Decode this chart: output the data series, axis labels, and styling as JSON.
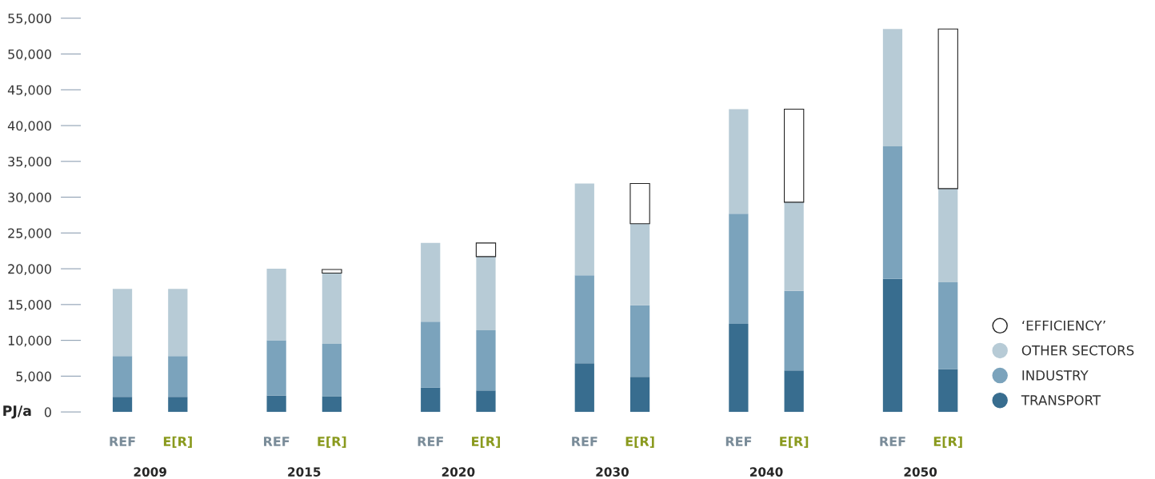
{
  "chart_data": {
    "type": "bar",
    "stacked": true,
    "ylabel": "PJ/a",
    "categories": [
      "REF",
      "E[R]",
      "REF",
      "E[R]",
      "REF",
      "E[R]",
      "REF",
      "E[R]",
      "REF",
      "E[R]",
      "REF",
      "E[R]"
    ],
    "series": [
      {
        "name": "TRANSPORT",
        "color": "#386d8f",
        "values": [
          2100,
          2100,
          2300,
          2200,
          3400,
          3000,
          6800,
          4900,
          12300,
          5800,
          18600,
          6000
        ]
      },
      {
        "name": "INDUSTRY",
        "color": "#7ba3bc",
        "values": [
          5700,
          5700,
          7700,
          7300,
          9200,
          8400,
          12300,
          10000,
          15400,
          11100,
          18500,
          12100
        ]
      },
      {
        "name": "OTHER SECTORS",
        "color": "#b7cbd6",
        "values": [
          9400,
          9400,
          10000,
          9900,
          11000,
          10300,
          12800,
          11400,
          14600,
          12400,
          16400,
          13100
        ]
      },
      {
        "name": "‘EFFICIENCY’",
        "color": "#ffffff",
        "values": [
          null,
          null,
          null,
          500,
          null,
          1900,
          null,
          5600,
          null,
          13000,
          null,
          22300
        ]
      }
    ],
    "ylim": [
      0,
      55000
    ],
    "yticks": [
      0,
      {
        "value": 5000,
        "label": "5,000"
      },
      {
        "value": 10000,
        "label": "10,000"
      },
      {
        "value": 15000,
        "label": "15,000"
      },
      {
        "value": 20000,
        "label": "20,000"
      },
      {
        "value": 25000,
        "label": "25,000"
      },
      {
        "value": 30000,
        "label": "30,000"
      },
      {
        "value": 35000,
        "label": "35,000"
      },
      {
        "value": 40000,
        "label": "40,000"
      },
      {
        "value": 45000,
        "label": "45,000"
      },
      {
        "value": 50000,
        "label": "50,000"
      },
      {
        "value": 55000,
        "label": "55,000"
      }
    ],
    "annotations": [
      "2009",
      "2015",
      "2020",
      "2030",
      "2040",
      "2050"
    ],
    "grid": false,
    "legend": "right"
  }
}
